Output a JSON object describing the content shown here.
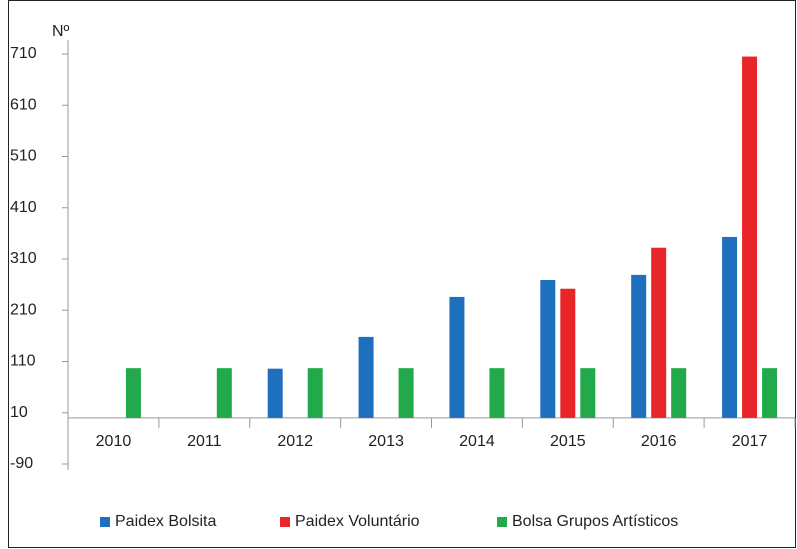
{
  "chart_data": {
    "type": "bar",
    "y_label": "Nº",
    "categories": [
      "2010",
      "2011",
      "2012",
      "2013",
      "2014",
      "2015",
      "2016",
      "2017"
    ],
    "series": [
      {
        "name": "Paidex Bolsita",
        "color": "#1f6fbf",
        "values": [
          null,
          null,
          96,
          158,
          236,
          269,
          279,
          353
        ]
      },
      {
        "name": "Paidex Voluntário",
        "color": "#e8262a",
        "values": [
          null,
          null,
          null,
          null,
          null,
          252,
          332,
          705
        ]
      },
      {
        "name": "Bolsa Grupos Artísticos",
        "color": "#22a94b",
        "values": [
          97,
          97,
          97,
          97,
          97,
          97,
          97,
          97
        ]
      }
    ],
    "ylim": [
      -90,
      710
    ],
    "yticks": [
      -90,
      10,
      110,
      210,
      310,
      410,
      510,
      610,
      710
    ],
    "grid": false,
    "legend": "bottom"
  }
}
